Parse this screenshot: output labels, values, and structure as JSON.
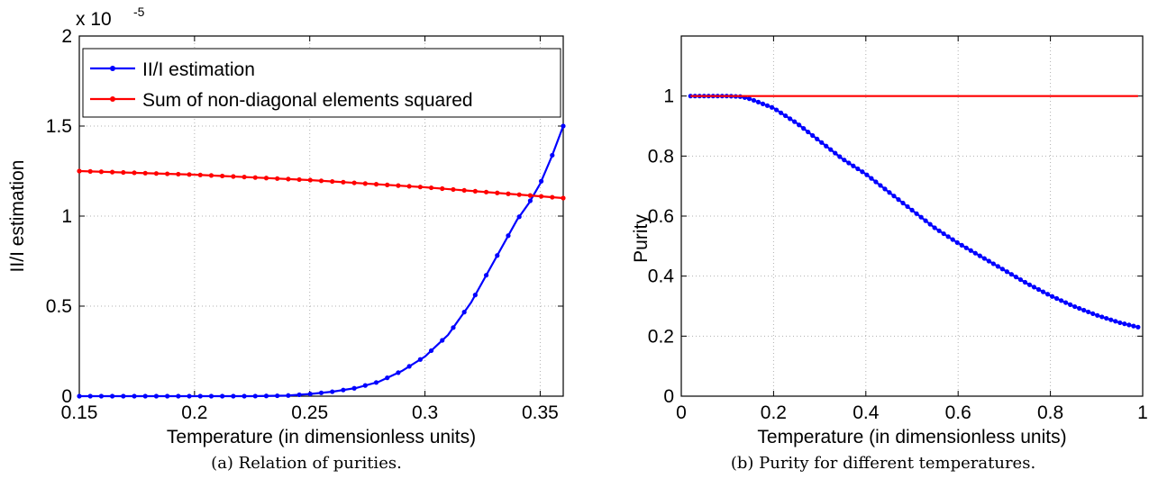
{
  "chart_data": [
    {
      "type": "line",
      "xlabel": "Temperature (in dimensionless units)",
      "ylabel": "II/I estimation",
      "exponent_label": "x 10",
      "exponent_power": "-5",
      "xlim": [
        0.15,
        0.36
      ],
      "ylim": [
        0,
        2
      ],
      "xticks": [
        0.15,
        0.2,
        0.25,
        0.3,
        0.35
      ],
      "xtick_labels": [
        "0.15",
        "0.2",
        "0.25",
        "0.3",
        "0.35"
      ],
      "yticks": [
        0,
        0.5,
        1,
        1.5,
        2
      ],
      "ytick_labels": [
        "0",
        "0.5",
        "1",
        "1.5",
        "2"
      ],
      "grid": true,
      "legend_position": "top-left",
      "series": [
        {
          "name": "II/I estimation",
          "color": "#0000ff",
          "marker": "dot",
          "x": [
            0.15,
            0.175,
            0.2,
            0.225,
            0.24,
            0.25,
            0.26,
            0.27,
            0.28,
            0.29,
            0.3,
            0.31,
            0.32,
            0.33,
            0.34,
            0.345,
            0.35,
            0.355,
            0.36
          ],
          "y": [
            0,
            0,
            0,
            0,
            0.003,
            0.012,
            0.025,
            0.045,
            0.08,
            0.14,
            0.22,
            0.34,
            0.52,
            0.75,
            0.98,
            1.07,
            1.18,
            1.33,
            1.5
          ]
        },
        {
          "name": "Sum of non-diagonal elements squared",
          "color": "#ff0000",
          "marker": "dot",
          "x": [
            0.15,
            0.2,
            0.25,
            0.3,
            0.35,
            0.36
          ],
          "y": [
            1.25,
            1.23,
            1.2,
            1.16,
            1.11,
            1.1
          ]
        }
      ]
    },
    {
      "type": "line",
      "xlabel": "Temperature (in dimensionless units)",
      "ylabel": "Purity",
      "xlim": [
        0,
        1
      ],
      "ylim": [
        0,
        1.2
      ],
      "xticks": [
        0,
        0.2,
        0.4,
        0.6,
        0.8,
        1
      ],
      "xtick_labels": [
        "0",
        "0.2",
        "0.4",
        "0.6",
        "0.8",
        "1"
      ],
      "yticks": [
        0,
        0.2,
        0.4,
        0.6,
        0.8,
        1
      ],
      "ytick_labels": [
        "0",
        "0.2",
        "0.4",
        "0.6",
        "0.8",
        "1"
      ],
      "grid": true,
      "series": [
        {
          "color": "#0000ff",
          "marker": "dot",
          "x": [
            0.02,
            0.1,
            0.13,
            0.15,
            0.2,
            0.25,
            0.3,
            0.35,
            0.4,
            0.45,
            0.5,
            0.55,
            0.6,
            0.65,
            0.7,
            0.75,
            0.8,
            0.85,
            0.9,
            0.95,
            0.99
          ],
          "y": [
            1.0,
            1.0,
            0.998,
            0.99,
            0.96,
            0.91,
            0.85,
            0.79,
            0.74,
            0.68,
            0.62,
            0.56,
            0.51,
            0.465,
            0.42,
            0.375,
            0.335,
            0.3,
            0.27,
            0.245,
            0.23
          ]
        },
        {
          "color": "#ff0000",
          "marker": "none",
          "x": [
            0.02,
            0.99
          ],
          "y": [
            1.0,
            1.0
          ]
        }
      ]
    }
  ],
  "captions": {
    "a": "(a) Relation of purities.",
    "b": "(b) Purity for different temperatures."
  }
}
